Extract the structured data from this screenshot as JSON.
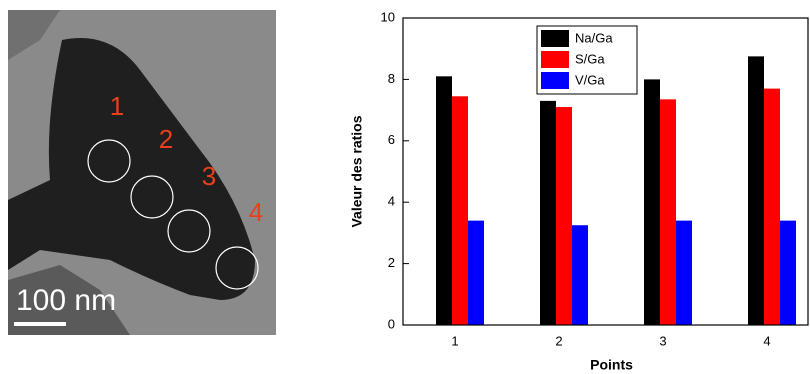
{
  "micrograph": {
    "labels": [
      "1",
      "2",
      "3",
      "4"
    ],
    "scale_bar": "100 nm"
  },
  "chart_data": {
    "type": "bar",
    "xlabel": "Points",
    "ylabel": "Valeur des ratios",
    "categories": [
      "1",
      "2",
      "3",
      "4"
    ],
    "series": [
      {
        "name": "Na/Ga",
        "color": "#000000",
        "values": [
          8.1,
          7.3,
          8.0,
          8.75
        ]
      },
      {
        "name": "S/Ga",
        "color": "#ff0000",
        "values": [
          7.45,
          7.1,
          7.35,
          7.7
        ]
      },
      {
        "name": "V/Ga",
        "color": "#0000ff",
        "values": [
          3.4,
          3.25,
          3.4,
          3.4
        ]
      }
    ],
    "ylim": [
      0,
      10
    ],
    "yticks": [
      0,
      2,
      4,
      6,
      8,
      10
    ],
    "legend": "top"
  }
}
